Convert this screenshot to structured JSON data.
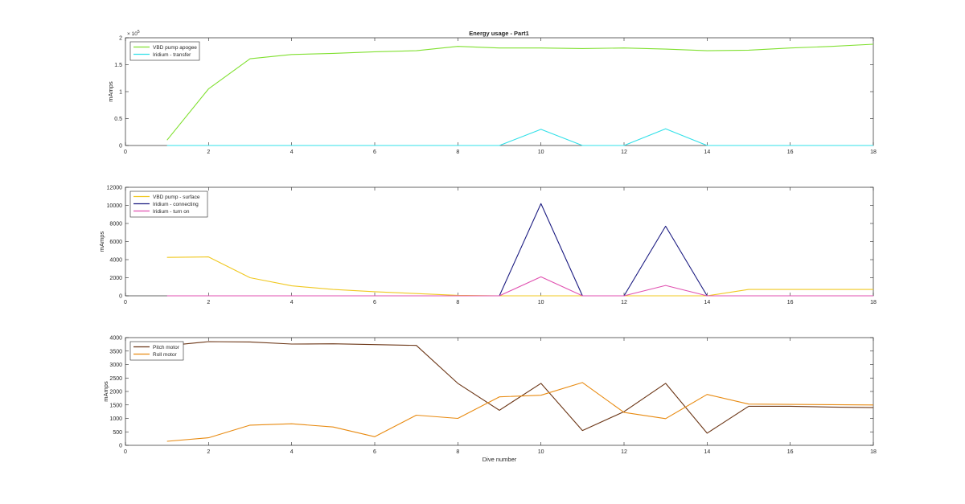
{
  "figure": {
    "title": "Energy usage - Part1"
  },
  "chart_data": [
    {
      "type": "line",
      "title": "Energy usage - Part1",
      "xlabel": "",
      "ylabel": "mAmps",
      "xlim": [
        0,
        18
      ],
      "ylim": [
        0,
        200000
      ],
      "xticks": [
        0,
        2,
        4,
        6,
        8,
        10,
        12,
        14,
        16,
        18
      ],
      "yticks": [
        0,
        50000,
        100000,
        150000,
        200000
      ],
      "ytick_labels": [
        "0",
        "0.5",
        "1",
        "1.5",
        "2"
      ],
      "y_exponent_label": "× 10",
      "y_exponent": "5",
      "legend_position": "top-left",
      "grid": false,
      "x": [
        1,
        2,
        3,
        4,
        5,
        6,
        7,
        8,
        9,
        10,
        11,
        12,
        13,
        14,
        15,
        16,
        17,
        18
      ],
      "series": [
        {
          "name": "VBD pump apogee",
          "color": "#80e030",
          "values": [
            10000,
            105000,
            161000,
            169000,
            171000,
            174000,
            176000,
            184000,
            181000,
            181000,
            180000,
            181000,
            179000,
            176000,
            177000,
            181000,
            184000,
            188000
          ]
        },
        {
          "name": "Iridium - transfer",
          "color": "#30e0e8",
          "values": [
            0,
            0,
            0,
            0,
            0,
            0,
            0,
            0,
            0,
            30000,
            0,
            0,
            31000,
            0,
            0,
            0,
            0,
            0
          ]
        }
      ]
    },
    {
      "type": "line",
      "title": "",
      "xlabel": "",
      "ylabel": "mAmps",
      "xlim": [
        0,
        18
      ],
      "ylim": [
        0,
        12000
      ],
      "xticks": [
        0,
        2,
        4,
        6,
        8,
        10,
        12,
        14,
        16,
        18
      ],
      "yticks": [
        0,
        2000,
        4000,
        6000,
        8000,
        10000,
        12000
      ],
      "ytick_labels": [
        "0",
        "2000",
        "4000",
        "6000",
        "8000",
        "10000",
        "12000"
      ],
      "legend_position": "top-left",
      "grid": false,
      "x": [
        1,
        2,
        3,
        4,
        5,
        6,
        7,
        8,
        9,
        10,
        11,
        12,
        13,
        14,
        15,
        16,
        17,
        18
      ],
      "series": [
        {
          "name": "VBD pump - surface",
          "color": "#f0c820",
          "values": [
            4250,
            4300,
            2000,
            1100,
            700,
            450,
            250,
            50,
            0,
            0,
            0,
            0,
            0,
            0,
            700,
            700,
            700,
            700
          ]
        },
        {
          "name": "Iridium - connecting",
          "color": "#1a1a80",
          "values": [
            0,
            0,
            0,
            0,
            0,
            0,
            0,
            0,
            0,
            10200,
            0,
            0,
            7700,
            0,
            0,
            0,
            0,
            0
          ]
        },
        {
          "name": "Iridium - turn on",
          "color": "#e050b0",
          "values": [
            0,
            0,
            0,
            0,
            0,
            0,
            0,
            0,
            0,
            2100,
            0,
            0,
            1150,
            0,
            0,
            0,
            0,
            0
          ]
        }
      ]
    },
    {
      "type": "line",
      "title": "",
      "xlabel": "Dive number",
      "ylabel": "mAmps",
      "xlim": [
        0,
        18
      ],
      "ylim": [
        0,
        4000
      ],
      "xticks": [
        0,
        2,
        4,
        6,
        8,
        10,
        12,
        14,
        16,
        18
      ],
      "yticks": [
        0,
        500,
        1000,
        1500,
        2000,
        2500,
        3000,
        3500,
        4000
      ],
      "ytick_labels": [
        "0",
        "500",
        "1000",
        "1500",
        "2000",
        "2500",
        "3000",
        "3500",
        "4000"
      ],
      "legend_position": "top-left",
      "grid": false,
      "x": [
        1,
        2,
        3,
        4,
        5,
        6,
        7,
        8,
        9,
        10,
        11,
        12,
        13,
        14,
        15,
        16,
        17,
        18
      ],
      "series": [
        {
          "name": "Pitch motor",
          "color": "#6b3515",
          "values": [
            3700,
            3850,
            3840,
            3760,
            3770,
            3740,
            3710,
            2300,
            1300,
            2300,
            550,
            1250,
            2300,
            450,
            1450,
            1450,
            1420,
            1400
          ]
        },
        {
          "name": "Roll motor",
          "color": "#e88a10",
          "values": [
            150,
            280,
            750,
            800,
            680,
            320,
            1120,
            1000,
            1800,
            1860,
            2330,
            1220,
            990,
            1890,
            1530,
            1520,
            1510,
            1500
          ]
        }
      ]
    }
  ]
}
